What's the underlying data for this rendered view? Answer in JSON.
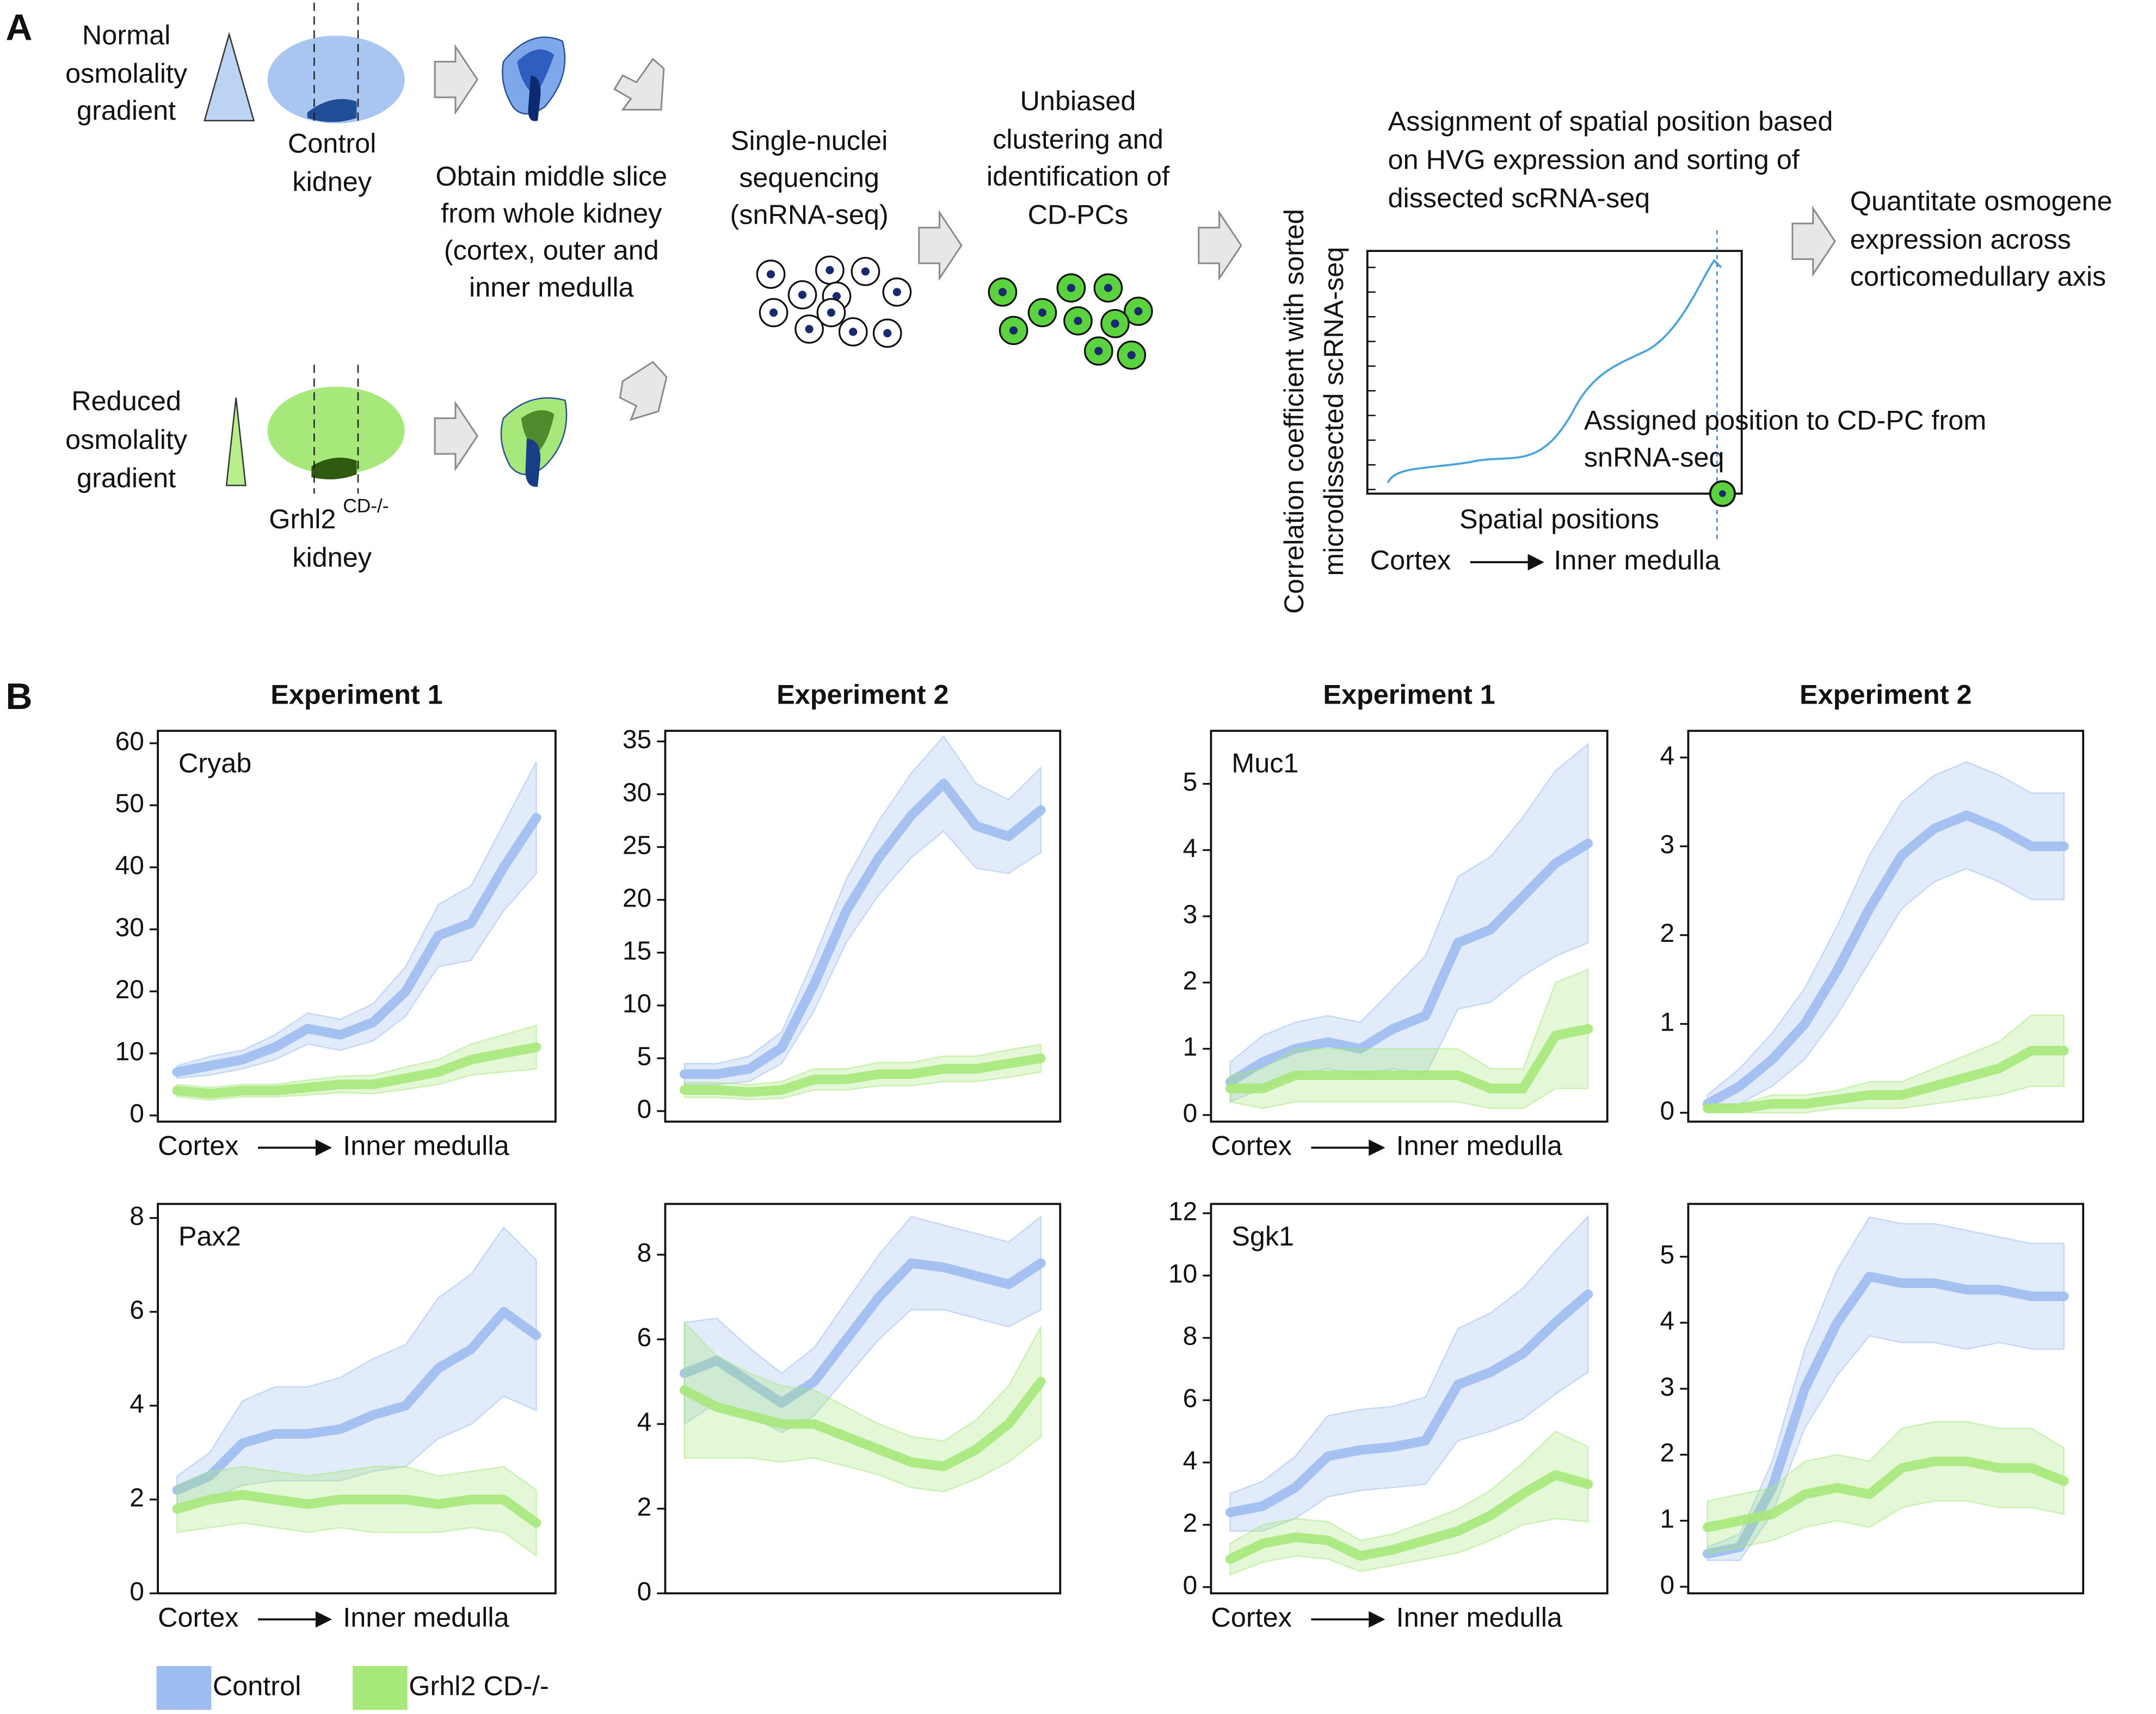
{
  "panel_a": {
    "label": "A",
    "normal": [
      "Normal",
      "osmolality",
      "gradient"
    ],
    "control_kidney": [
      "Control",
      "kidney"
    ],
    "obtain": [
      "Obtain middle slice",
      "from whole kidney",
      "(cortex, outer and",
      "inner medulla"
    ],
    "reduced": [
      "Reduced",
      "osmolality",
      "gradient"
    ],
    "mutant_kidney": {
      "name": "Grhl2",
      "superscript": "CD-/-",
      "line2": "kidney"
    },
    "sequencing": [
      "Single-nuclei",
      "sequencing",
      "(snRNA-seq)"
    ],
    "clustering": [
      "Unbiased",
      "clustering and",
      "identification of",
      "CD-PCs"
    ],
    "assignment": [
      "Assignment of spatial position based",
      "on HVG expression and sorting of",
      "dissected scRNA-seq"
    ],
    "quantitate": [
      "Quantitate osmogene",
      "expression across",
      "corticomedullary axis"
    ],
    "schematic_ylabel": [
      "Correlation coefficient with sorted",
      "microdissected scRNA-seq"
    ],
    "schematic_annotation": [
      "Assigned position to CD-PC from",
      "snRNA-seq"
    ],
    "schematic_xlabel": "Spatial positions",
    "schematic_axis": [
      "Cortex",
      "Inner medulla"
    ]
  },
  "panel_b": {
    "label": "B"
  },
  "chart_data": [
    {
      "type": "line",
      "title": "Experiment 1",
      "annotation": "Cryab",
      "xlabel": [
        "Cortex",
        "Inner medulla"
      ],
      "ylim": [
        -1,
        62
      ],
      "yticks": [
        0,
        10,
        20,
        30,
        40,
        50,
        60
      ],
      "series": [
        {
          "name": "Control",
          "color": "#9dbcef",
          "values": [
            7,
            8,
            9,
            11,
            14,
            13,
            15,
            20,
            29,
            31,
            40,
            48
          ],
          "error": [
            1,
            1.5,
            1.5,
            2,
            2.5,
            2.5,
            3,
            4,
            5,
            6,
            7,
            9
          ]
        },
        {
          "name": "Grhl2 CD-/-",
          "color": "#a6e87a",
          "values": [
            4,
            3.5,
            4,
            4,
            4.5,
            5,
            5,
            6,
            7,
            9,
            10,
            11
          ],
          "error": [
            1,
            1,
            1,
            1,
            1.2,
            1.3,
            1.5,
            1.8,
            2,
            2.5,
            3,
            3.5
          ]
        }
      ]
    },
    {
      "type": "line",
      "title": "Experiment 2",
      "ylim": [
        -1,
        36
      ],
      "yticks": [
        0,
        5,
        10,
        15,
        20,
        25,
        30,
        35
      ],
      "series": [
        {
          "name": "Control",
          "color": "#9dbcef",
          "values": [
            3.5,
            3.5,
            4,
            6,
            12,
            19,
            24,
            28,
            31,
            27,
            26,
            28.5
          ],
          "error": [
            1,
            1,
            1.2,
            1.5,
            2.5,
            3,
            3.5,
            4,
            4.5,
            4,
            3.5,
            4
          ]
        },
        {
          "name": "Grhl2 CD-/-",
          "color": "#a6e87a",
          "values": [
            2,
            2,
            1.8,
            2,
            3,
            3,
            3.5,
            3.5,
            4,
            4,
            4.5,
            5
          ],
          "error": [
            0.7,
            0.7,
            0.7,
            0.8,
            1,
            1,
            1.1,
            1.1,
            1.2,
            1.2,
            1.3,
            1.3
          ]
        }
      ]
    },
    {
      "type": "line",
      "title": "Experiment 1",
      "annotation": "Muc1",
      "xlabel": [
        "Cortex",
        "Inner medulla"
      ],
      "ylim": [
        -0.1,
        5.8
      ],
      "yticks": [
        0,
        1,
        2,
        3,
        4,
        5
      ],
      "series": [
        {
          "name": "Control",
          "color": "#9dbcef",
          "values": [
            0.5,
            0.8,
            1.0,
            1.1,
            1.0,
            1.3,
            1.5,
            2.6,
            2.8,
            3.3,
            3.8,
            4.1
          ],
          "error": [
            0.3,
            0.4,
            0.4,
            0.4,
            0.4,
            0.6,
            0.9,
            1.0,
            1.1,
            1.2,
            1.4,
            1.5
          ]
        },
        {
          "name": "Grhl2 CD-/-",
          "color": "#a6e87a",
          "values": [
            0.4,
            0.4,
            0.6,
            0.6,
            0.6,
            0.6,
            0.6,
            0.6,
            0.4,
            0.4,
            1.2,
            1.3
          ],
          "error": [
            0.2,
            0.3,
            0.4,
            0.4,
            0.4,
            0.4,
            0.4,
            0.4,
            0.3,
            0.3,
            0.8,
            0.9
          ]
        }
      ]
    },
    {
      "type": "line",
      "title": "Experiment 2",
      "ylim": [
        -0.1,
        4.3
      ],
      "yticks": [
        0,
        1,
        2,
        3,
        4
      ],
      "series": [
        {
          "name": "Control",
          "color": "#9dbcef",
          "values": [
            0.1,
            0.3,
            0.6,
            1.0,
            1.6,
            2.3,
            2.9,
            3.2,
            3.35,
            3.2,
            3.0,
            3.0
          ],
          "error": [
            0.1,
            0.2,
            0.3,
            0.4,
            0.5,
            0.6,
            0.6,
            0.6,
            0.6,
            0.6,
            0.6,
            0.6
          ]
        },
        {
          "name": "Grhl2 CD-/-",
          "color": "#a6e87a",
          "values": [
            0.05,
            0.05,
            0.1,
            0.1,
            0.15,
            0.2,
            0.2,
            0.3,
            0.4,
            0.5,
            0.7,
            0.7
          ],
          "error": [
            0.05,
            0.05,
            0.1,
            0.1,
            0.1,
            0.15,
            0.15,
            0.2,
            0.25,
            0.3,
            0.4,
            0.4
          ]
        }
      ]
    },
    {
      "type": "line",
      "annotation": "Pax2",
      "xlabel": [
        "Cortex",
        "Inner medulla"
      ],
      "ylim": [
        0,
        8.3
      ],
      "yticks": [
        0,
        2,
        4,
        6,
        8
      ],
      "series": [
        {
          "name": "Control",
          "color": "#9dbcef",
          "values": [
            2.2,
            2.5,
            3.2,
            3.4,
            3.4,
            3.5,
            3.8,
            4.0,
            4.8,
            5.2,
            6.0,
            5.5
          ],
          "error": [
            0.3,
            0.5,
            0.9,
            1.0,
            1.0,
            1.1,
            1.2,
            1.3,
            1.5,
            1.6,
            1.8,
            1.6
          ]
        },
        {
          "name": "Grhl2 CD-/-",
          "color": "#a6e87a",
          "values": [
            1.8,
            2.0,
            2.1,
            2.0,
            1.9,
            2.0,
            2.0,
            2.0,
            1.9,
            2.0,
            2.0,
            1.5
          ],
          "error": [
            0.5,
            0.6,
            0.6,
            0.6,
            0.6,
            0.6,
            0.7,
            0.7,
            0.6,
            0.6,
            0.7,
            0.7
          ]
        }
      ]
    },
    {
      "type": "line",
      "ylim": [
        0,
        9.2
      ],
      "yticks": [
        0,
        2,
        4,
        6,
        8
      ],
      "series": [
        {
          "name": "Control",
          "color": "#9dbcef",
          "values": [
            5.2,
            5.5,
            5.0,
            4.5,
            5.0,
            6.0,
            7.0,
            7.8,
            7.7,
            7.5,
            7.3,
            7.8
          ],
          "error": [
            1.2,
            1.0,
            0.8,
            0.7,
            0.8,
            0.9,
            1.0,
            1.1,
            1.0,
            1.0,
            1.0,
            1.1
          ]
        },
        {
          "name": "Grhl2 CD-/-",
          "color": "#a6e87a",
          "values": [
            4.8,
            4.4,
            4.2,
            4.0,
            4.0,
            3.7,
            3.4,
            3.1,
            3.0,
            3.4,
            4.0,
            5.0
          ],
          "error": [
            1.6,
            1.2,
            1.0,
            0.9,
            0.8,
            0.7,
            0.6,
            0.6,
            0.6,
            0.7,
            0.9,
            1.3
          ]
        }
      ]
    },
    {
      "type": "line",
      "annotation": "Sgk1",
      "xlabel": [
        "Cortex",
        "Inner medulla"
      ],
      "ylim": [
        -0.2,
        12.3
      ],
      "yticks": [
        0,
        2,
        4,
        6,
        8,
        10,
        12
      ],
      "series": [
        {
          "name": "Control",
          "color": "#9dbcef",
          "values": [
            2.4,
            2.6,
            3.2,
            4.2,
            4.4,
            4.5,
            4.7,
            6.5,
            6.9,
            7.5,
            8.5,
            9.4
          ],
          "error": [
            0.6,
            0.8,
            1.0,
            1.3,
            1.3,
            1.3,
            1.4,
            1.8,
            1.9,
            2.1,
            2.3,
            2.5
          ]
        },
        {
          "name": "Grhl2 CD-/-",
          "color": "#a6e87a",
          "values": [
            0.9,
            1.4,
            1.6,
            1.5,
            1.0,
            1.2,
            1.5,
            1.8,
            2.3,
            3.0,
            3.6,
            3.3
          ],
          "error": [
            0.5,
            0.6,
            0.6,
            0.6,
            0.5,
            0.5,
            0.6,
            0.7,
            0.8,
            1.0,
            1.4,
            1.2
          ]
        }
      ]
    },
    {
      "type": "line",
      "ylim": [
        -0.1,
        5.8
      ],
      "yticks": [
        0,
        1,
        2,
        3,
        4,
        5
      ],
      "series": [
        {
          "name": "Control",
          "color": "#9dbcef",
          "values": [
            0.5,
            0.6,
            1.5,
            3.0,
            4.0,
            4.7,
            4.6,
            4.6,
            4.5,
            4.5,
            4.4,
            4.4
          ],
          "error": [
            0.1,
            0.2,
            0.4,
            0.6,
            0.8,
            0.9,
            0.9,
            0.9,
            0.9,
            0.8,
            0.8,
            0.8
          ]
        },
        {
          "name": "Grhl2 CD-/-",
          "color": "#a6e87a",
          "values": [
            0.9,
            1.0,
            1.1,
            1.4,
            1.5,
            1.4,
            1.8,
            1.9,
            1.9,
            1.8,
            1.8,
            1.6
          ],
          "error": [
            0.4,
            0.4,
            0.4,
            0.5,
            0.5,
            0.5,
            0.6,
            0.6,
            0.6,
            0.6,
            0.6,
            0.5
          ]
        }
      ]
    }
  ]
}
